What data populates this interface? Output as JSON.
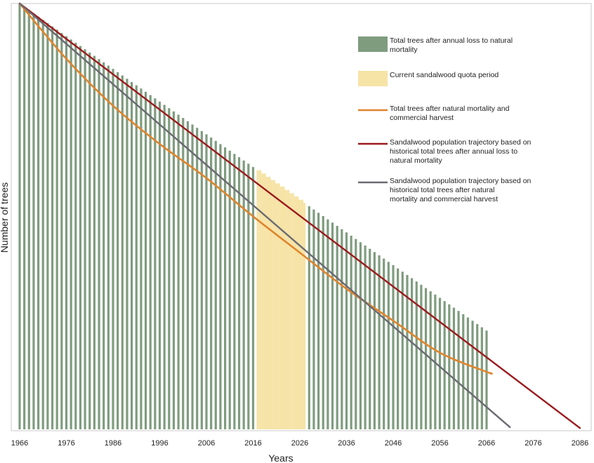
{
  "colors": {
    "bars": "#7f9c7f",
    "quota_bars": "#f6e3a6",
    "orange": "#e0842b",
    "red": "#9b1a1d",
    "gray": "#6a6a72",
    "frame": "#c8c8c8"
  },
  "chart_data": {
    "type": "bar",
    "title": "",
    "xlabel": "Years",
    "ylabel": "Number of trees",
    "xlim": [
      1966,
      2086
    ],
    "ylim": [
      0,
      100
    ],
    "x_ticks": [
      "1966",
      "1976",
      "1986",
      "1996",
      "2006",
      "2016",
      "2026",
      "2036",
      "2046",
      "2056",
      "2066",
      "2076",
      "2086"
    ],
    "grid": false,
    "legend_position": "top-right",
    "bars": {
      "name": "Total trees after annual loss to natural mortality",
      "x_start": 1966,
      "x_end": 2066,
      "start_value": 100,
      "end_value": 23.2
    },
    "quota_period": {
      "name": "Current sandalwood quota period",
      "from": 2017,
      "to": 2027
    },
    "series": [
      {
        "name": "Total trees after natural mortality and commercial harvest",
        "type": "line",
        "points": [
          [
            1966,
            100
          ],
          [
            1976,
            87
          ],
          [
            1986,
            76
          ],
          [
            1996,
            67
          ],
          [
            2006,
            59
          ],
          [
            2016,
            50
          ],
          [
            2026,
            41.5
          ],
          [
            2036,
            33
          ],
          [
            2046,
            25.5
          ],
          [
            2056,
            18
          ],
          [
            2066,
            13.5
          ],
          [
            2067,
            13.2
          ]
        ]
      },
      {
        "name": "Sandalwood population trajectory based on historical total trees after annual loss to natural mortality",
        "type": "line",
        "points": [
          [
            1966,
            100
          ],
          [
            2086,
            0.3
          ]
        ]
      },
      {
        "name": "Sandalwood population trajectory based on historical total trees after natural mortality and commercial harvest",
        "type": "line",
        "points": [
          [
            1966,
            100
          ],
          [
            2071,
            0.5
          ]
        ]
      }
    ]
  }
}
